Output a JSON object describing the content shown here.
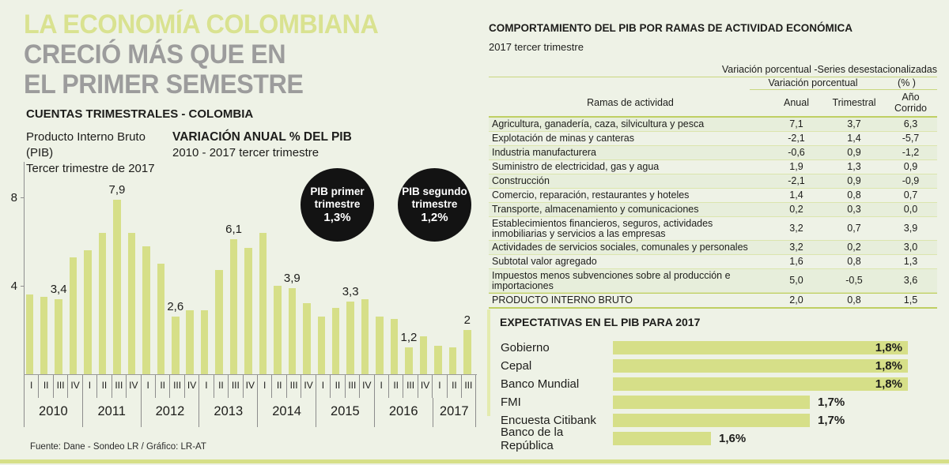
{
  "page": {
    "title_line1": "LA ECONOMÍA COLOMBIANA",
    "title_line2": "CRECIÓ MÁS QUE EN",
    "title_line3": "EL PRIMER SEMESTRE",
    "source": "Fuente: Dane - Sondeo LR / Gráfico: LR-AT",
    "colors": {
      "background": "#eef2e6",
      "accent_green": "#d6df88",
      "headline_green": "#d9e290",
      "headline_gray": "#9c9c9c",
      "badge_black": "#131313",
      "table_line": "#c9d77f",
      "row_band": "#e7eedb"
    }
  },
  "quarterly_section": {
    "heading": "CUENTAS TRIMESTRALES - COLOMBIA",
    "subtitle_left_line1": "Producto Interno Bruto (PIB)",
    "subtitle_left_line2": "Tercer trimestre de 2017",
    "subtitle_right_line1": "VARIACIÓN ANUAL % DEL PIB",
    "subtitle_right_line2": "2010 - 2017 tercer trimestre"
  },
  "badges": [
    {
      "line1": "PIB primer",
      "line2": "trimestre",
      "value": "1,3%"
    },
    {
      "line1": "PIB segundo",
      "line2": "trimestre",
      "value": "1,2%"
    }
  ],
  "chart_data": [
    {
      "type": "bar",
      "title": "VARIACIÓN ANUAL % DEL PIB",
      "subtitle": "2010 - 2017 tercer trimestre",
      "ylabel": "Variación anual %",
      "ylim": [
        0,
        8.6
      ],
      "yticks": [
        {
          "value": 4,
          "label": "4"
        },
        {
          "value": 8,
          "label": "8"
        }
      ],
      "grid": false,
      "years": [
        {
          "year": "2010",
          "quarters": [
            "I",
            "II",
            "III",
            "IV"
          ],
          "values": [
            3.6,
            3.5,
            3.4,
            5.3
          ]
        },
        {
          "year": "2011",
          "quarters": [
            "I",
            "II",
            "III",
            "IV"
          ],
          "values": [
            5.6,
            6.4,
            7.9,
            6.4
          ]
        },
        {
          "year": "2012",
          "quarters": [
            "I",
            "II",
            "III",
            "IV"
          ],
          "values": [
            5.8,
            5.0,
            2.6,
            2.9
          ]
        },
        {
          "year": "2013",
          "quarters": [
            "I",
            "II",
            "III",
            "IV"
          ],
          "values": [
            2.9,
            4.7,
            6.1,
            5.7
          ]
        },
        {
          "year": "2014",
          "quarters": [
            "I",
            "II",
            "III",
            "IV"
          ],
          "values": [
            6.4,
            4.0,
            3.9,
            3.2
          ]
        },
        {
          "year": "2015",
          "quarters": [
            "I",
            "II",
            "III",
            "IV"
          ],
          "values": [
            2.6,
            3.0,
            3.3,
            3.4
          ]
        },
        {
          "year": "2016",
          "quarters": [
            "I",
            "II",
            "III",
            "IV"
          ],
          "values": [
            2.6,
            2.5,
            1.2,
            1.7
          ]
        },
        {
          "year": "2017",
          "quarters": [
            "I",
            "II",
            "III"
          ],
          "values": [
            1.3,
            1.2,
            2.0
          ]
        }
      ],
      "value_labels": [
        {
          "index": 2,
          "text": "3,4"
        },
        {
          "index": 6,
          "text": "7,9"
        },
        {
          "index": 10,
          "text": "2,6"
        },
        {
          "index": 14,
          "text": "6,1"
        },
        {
          "index": 18,
          "text": "3,9"
        },
        {
          "index": 22,
          "text": "3,3"
        },
        {
          "index": 26,
          "text": "1,2"
        },
        {
          "index": 30,
          "text": "2"
        }
      ]
    },
    {
      "type": "bar",
      "orientation": "horizontal",
      "title": "EXPECTATIVAS EN EL PIB PARA 2017",
      "categories": [
        "Gobierno",
        "Cepal",
        "Banco Mundial",
        "FMI",
        "Encuesta Citibank",
        "Banco de la República"
      ],
      "values": [
        1.8,
        1.8,
        1.8,
        1.7,
        1.7,
        1.6
      ],
      "labels": [
        "1,8%",
        "1,8%",
        "1,8%",
        "1,7%",
        "1,7%",
        "1,6%"
      ],
      "axis_origin": 1.5,
      "grid": false
    }
  ],
  "table": {
    "title": "COMPORTAMIENTO DEL PIB POR RAMAS DE ACTIVIDAD ECONÓMICA",
    "subtitle": "2017 tercer trimestre",
    "header_note": "Variación porcentual  -Series desestacionalizadas",
    "group_header": "Variación porcentual",
    "group_header_pct": "(% )",
    "col_headers": {
      "c1": "Ramas de actividad",
      "c2": "Anual",
      "c3": "Trimestral",
      "c4": "Año Corrido"
    },
    "rows": [
      {
        "name": "Agricultura, ganadería, caza, silvicultura y pesca",
        "anual": "7,1",
        "trimestral": "3,7",
        "ano_corrido": "6,3"
      },
      {
        "name": "Explotación de minas y canteras",
        "anual": "-2,1",
        "trimestral": "1,4",
        "ano_corrido": "-5,7"
      },
      {
        "name": "Industria manufacturera",
        "anual": "-0,6",
        "trimestral": "0,9",
        "ano_corrido": "-1,2"
      },
      {
        "name": "Suministro de electricidad, gas y agua",
        "anual": "1,9",
        "trimestral": "1,3",
        "ano_corrido": "0,9"
      },
      {
        "name": "Construcción",
        "anual": "-2,1",
        "trimestral": "0,9",
        "ano_corrido": "-0,9"
      },
      {
        "name": "Comercio, reparación, restaurantes y hoteles",
        "anual": "1,4",
        "trimestral": "0,8",
        "ano_corrido": "0,7"
      },
      {
        "name": "Transporte, almacenamiento y comunicaciones",
        "anual": "0,2",
        "trimestral": "0,3",
        "ano_corrido": "0,0"
      },
      {
        "name": "Establecimientos financieros, seguros, actividades inmobiliarias y servicios a las empresas",
        "anual": "3,2",
        "trimestral": "0,7",
        "ano_corrido": "3,9"
      },
      {
        "name": "Actividades de servicios sociales, comunales y personales",
        "anual": "3,2",
        "trimestral": "0,2",
        "ano_corrido": "3,0"
      },
      {
        "name": "Subtotal valor agregado",
        "anual": "1,6",
        "trimestral": "0,8",
        "ano_corrido": "1,3"
      },
      {
        "name": "Impuestos menos subvenciones sobre al producción e importaciones",
        "anual": "5,0",
        "trimestral": "-0,5",
        "ano_corrido": "3,6"
      },
      {
        "name": "PRODUCTO INTERNO BRUTO",
        "anual": "2,0",
        "trimestral": "0,8",
        "ano_corrido": "1,5",
        "emphasis": true
      }
    ]
  },
  "expectativas": {
    "title": "EXPECTATIVAS EN EL PIB PARA 2017"
  }
}
